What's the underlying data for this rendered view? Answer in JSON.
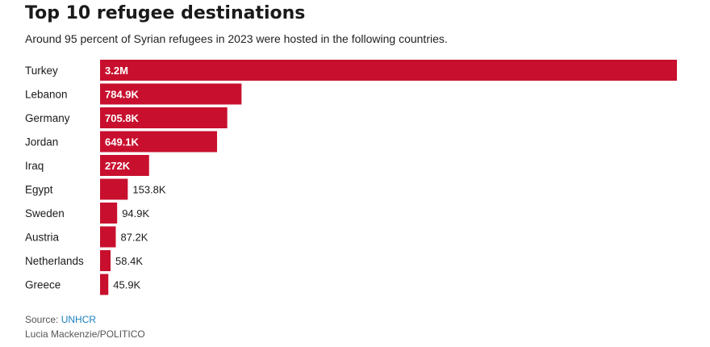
{
  "title": "Top 10 refugee destinations",
  "subtitle": "Around 95 percent of Syrian refugees in 2023 were hosted in the following countries.",
  "source_label": "Source:",
  "source_name": "UNHCR",
  "credit": "Lucia Mackenzie/POLITICO",
  "colors": {
    "bar": "#c8102e",
    "inside_label": "#ffffff",
    "outside_label": "#1a1a1a"
  },
  "chart_data": {
    "type": "bar",
    "orientation": "horizontal",
    "categories": [
      "Turkey",
      "Lebanon",
      "Germany",
      "Jordan",
      "Iraq",
      "Egypt",
      "Sweden",
      "Austria",
      "Netherlands",
      "Greece"
    ],
    "values": [
      3200000,
      784900,
      705800,
      649100,
      272000,
      153800,
      94900,
      87200,
      58400,
      45900
    ],
    "value_labels": [
      "3.2M",
      "784.9K",
      "705.8K",
      "649.1K",
      "272K",
      "153.8K",
      "94.9K",
      "87.2K",
      "58.4K",
      "45.9K"
    ],
    "xlim": [
      0,
      3200000
    ],
    "grid": false,
    "legend": "none"
  }
}
